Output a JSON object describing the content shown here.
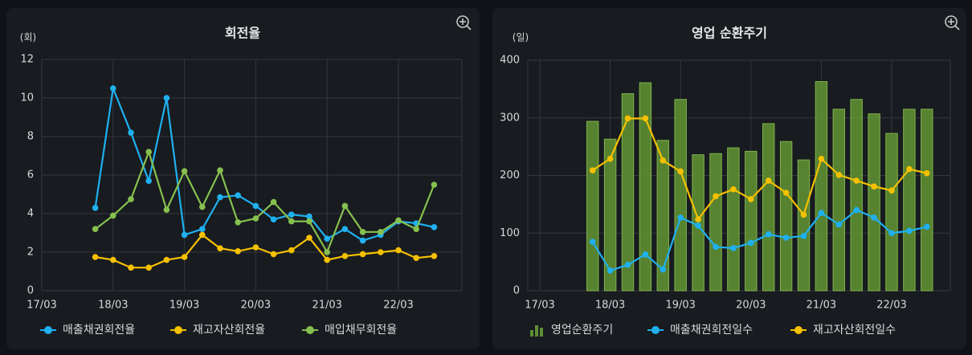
{
  "chart_data": [
    {
      "type": "line",
      "title": "회전율",
      "y_label": "(회)",
      "categories": [
        "17/03",
        null,
        null,
        null,
        "18/03",
        null,
        null,
        null,
        "19/03",
        null,
        null,
        null,
        "20/03",
        null,
        null,
        null,
        "21/03",
        null,
        null,
        null,
        "22/03",
        null,
        null
      ],
      "series": [
        {
          "name": "매출채권회전율",
          "color": "#1fb0f0",
          "values": [
            null,
            null,
            null,
            4.3,
            10.5,
            8.2,
            5.7,
            10.0,
            2.9,
            3.2,
            4.85,
            4.95,
            4.4,
            3.7,
            3.95,
            3.85,
            2.7,
            3.2,
            2.6,
            2.9,
            3.6,
            3.5,
            3.3
          ]
        },
        {
          "name": "재고자산회전율",
          "color": "#f5c000",
          "values": [
            null,
            null,
            null,
            1.75,
            1.6,
            1.2,
            1.2,
            1.6,
            1.75,
            2.9,
            2.2,
            2.05,
            2.25,
            1.9,
            2.1,
            2.75,
            1.6,
            1.8,
            1.9,
            2.0,
            2.1,
            1.7,
            1.8
          ]
        },
        {
          "name": "매입채무회전율",
          "color": "#86c04f",
          "values": [
            null,
            null,
            null,
            3.2,
            3.9,
            4.75,
            7.2,
            4.2,
            6.2,
            4.35,
            6.25,
            3.55,
            3.75,
            4.6,
            3.6,
            3.6,
            2.0,
            4.4,
            3.05,
            3.05,
            3.65,
            3.2,
            5.5
          ]
        }
      ],
      "ylim": [
        0,
        12
      ],
      "yticks": [
        0,
        2,
        4,
        6,
        8,
        10,
        12
      ],
      "grid": true
    },
    {
      "type": "bar_line",
      "title": "영업 순환주기",
      "y_label": "(일)",
      "categories": [
        "17/03",
        null,
        null,
        null,
        "18/03",
        null,
        null,
        null,
        "19/03",
        null,
        null,
        null,
        "20/03",
        null,
        null,
        null,
        "21/03",
        null,
        null,
        null,
        "22/03",
        null,
        null
      ],
      "series": [
        {
          "name": "영업순환주기",
          "type": "bar",
          "color": "#5e8f33",
          "values": [
            null,
            null,
            null,
            294,
            263,
            342,
            361,
            261,
            332,
            236,
            238,
            248,
            242,
            290,
            259,
            227,
            363,
            315,
            332,
            307,
            273,
            315,
            315
          ]
        },
        {
          "name": "매출채권회전일수",
          "type": "line",
          "color": "#1fb0f0",
          "values": [
            null,
            null,
            null,
            85,
            35,
            45,
            63,
            37,
            127,
            113,
            76,
            74,
            83,
            98,
            92,
            95,
            135,
            115,
            140,
            127,
            100,
            104,
            111
          ]
        },
        {
          "name": "재고자산회전일수",
          "type": "line",
          "color": "#f5c000",
          "values": [
            null,
            null,
            null,
            209,
            229,
            299,
            299,
            226,
            207,
            124,
            164,
            176,
            159,
            191,
            170,
            132,
            229,
            201,
            191,
            181,
            174,
            211,
            204
          ]
        }
      ],
      "ylim": [
        0,
        400
      ],
      "yticks": [
        0,
        100,
        200,
        300,
        400
      ],
      "grid": true
    }
  ]
}
